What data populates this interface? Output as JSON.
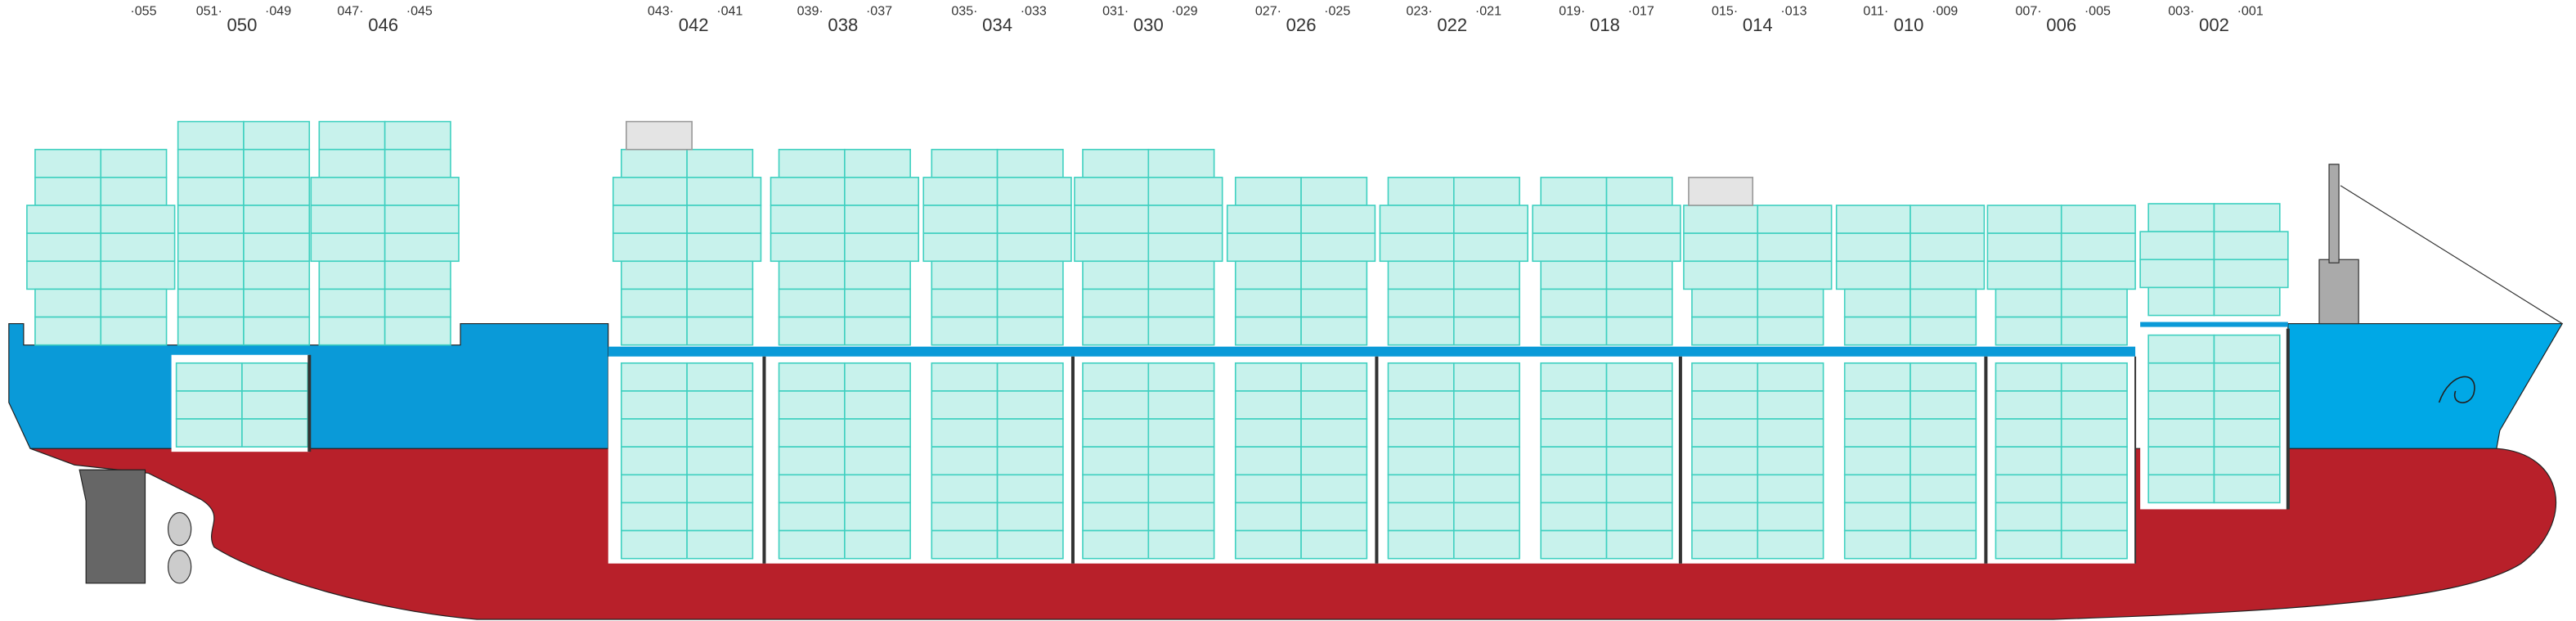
{
  "aft_label": "·055",
  "bays": [
    {
      "label": "050",
      "left": "051·",
      "right": "·049"
    },
    {
      "label": "046",
      "left": "047·",
      "right": "·045"
    },
    {
      "label": "042",
      "left": "043·",
      "right": "·041"
    },
    {
      "label": "038",
      "left": "039·",
      "right": "·037"
    },
    {
      "label": "034",
      "left": "035·",
      "right": "·033"
    },
    {
      "label": "030",
      "left": "031·",
      "right": "·029"
    },
    {
      "label": "026",
      "left": "027·",
      "right": "·025"
    },
    {
      "label": "022",
      "left": "023·",
      "right": "·021"
    },
    {
      "label": "018",
      "left": "019·",
      "right": "·017"
    },
    {
      "label": "014",
      "left": "015·",
      "right": "·013"
    },
    {
      "label": "010",
      "left": "011·",
      "right": "·009"
    },
    {
      "label": "006",
      "left": "007·",
      "right": "·005"
    },
    {
      "label": "002",
      "left": "003·",
      "right": "·001"
    }
  ]
}
